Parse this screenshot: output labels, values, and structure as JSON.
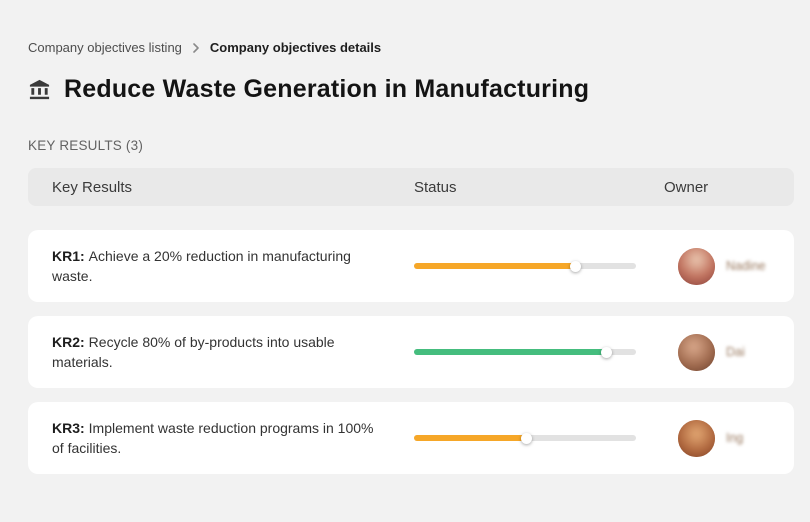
{
  "breadcrumb": {
    "parent": "Company objectives listing",
    "current": "Company objectives details"
  },
  "page": {
    "title": "Reduce Waste Generation in Manufacturing",
    "title_icon": "bank-building-icon",
    "section_label": "KEY RESULTS (3)"
  },
  "table": {
    "headers": [
      "Key Results",
      "Status",
      "Owner"
    ],
    "rows": [
      {
        "kr_label": "KR1:",
        "kr_text": "Achieve a 20% reduction in manufacturing waste.",
        "progress_percent": 73,
        "progress_color": "#f6a728",
        "owner": "Nadine"
      },
      {
        "kr_label": "KR2:",
        "kr_text": "Recycle 80% of by-products into usable materials.",
        "progress_percent": 87,
        "progress_color": "#45bd7e",
        "owner": "Dai"
      },
      {
        "kr_label": "KR3:",
        "kr_text": "Implement waste reduction programs in 100% of facilities.",
        "progress_percent": 51,
        "progress_color": "#f6a728",
        "owner": "Ing"
      }
    ]
  },
  "colors": {
    "background": "#f2f2f2",
    "card": "#ffffff",
    "header_bar": "#e9e9e9",
    "track": "#e2e2e2",
    "orange": "#f6a728",
    "green": "#45bd7e"
  }
}
